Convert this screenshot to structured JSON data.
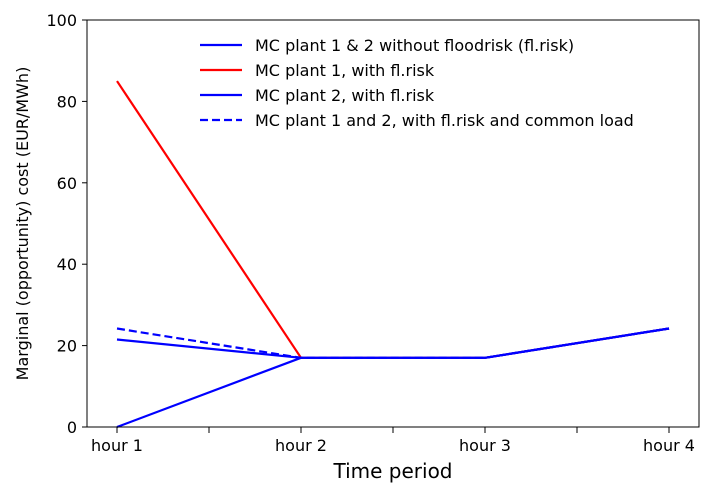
{
  "chart_data": {
    "type": "line",
    "title": "",
    "xlabel": "Time period",
    "ylabel": "Marginal (opportunity) cost (EUR/MWh)",
    "categories": [
      "hour 1",
      "hour 2",
      "hour 3",
      "hour 4"
    ],
    "ylim": [
      0,
      100
    ],
    "yticks": [
      0,
      20,
      40,
      60,
      80,
      100
    ],
    "grid": false,
    "legend_position": "top-right",
    "series": [
      {
        "name": "MC plant 1 & 2 without floodrisk (fl.risk)",
        "values": [
          0,
          17.0,
          17.0,
          24.2
        ],
        "color": "#0000ff",
        "style": "solid"
      },
      {
        "name": "MC plant 1, with fl.risk",
        "values": [
          85.0,
          17.0,
          17.0,
          24.2
        ],
        "color": "#ff0000",
        "style": "solid"
      },
      {
        "name": "MC plant 2, with fl.risk",
        "values": [
          21.5,
          17.0,
          17.0,
          24.2
        ],
        "color": "#0000ff",
        "style": "solid"
      },
      {
        "name": "MC plant 1 and 2, with fl.risk and common load",
        "values": [
          24.2,
          17.0,
          17.0,
          24.2
        ],
        "color": "#0000ff",
        "style": "dashed"
      }
    ]
  }
}
